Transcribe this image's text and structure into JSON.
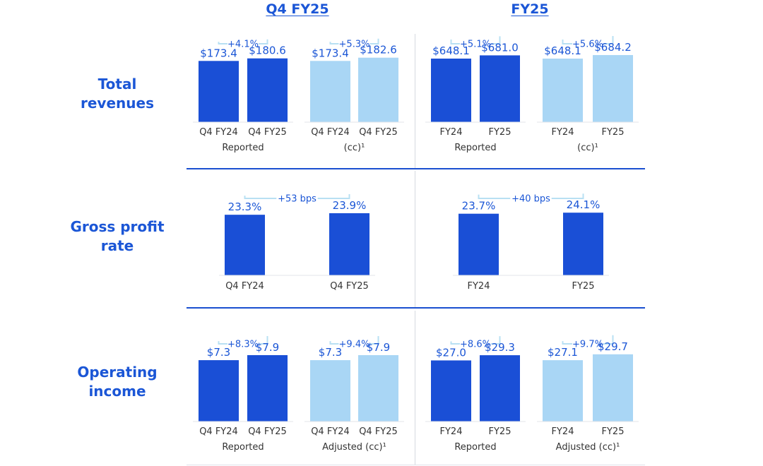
{
  "headers": {
    "q4": "Q4 FY25",
    "fy": "FY25"
  },
  "rows": [
    {
      "label_lines": [
        "Total",
        "revenues"
      ]
    },
    {
      "label_lines": [
        "Gross profit",
        "rate"
      ]
    },
    {
      "label_lines": [
        "Operating",
        "income"
      ]
    }
  ],
  "colors": {
    "dark": "#1a4fd6",
    "light": "#a9d6f5",
    "text": "#1b56d6",
    "bracket": "#b8e0f3",
    "axis_label": "#333333"
  },
  "chart_data": [
    {
      "id": "rev-q4-reported",
      "type": "bar",
      "row": 0,
      "col": 0,
      "group_label": "Reported",
      "delta": "+4.1%",
      "ylim": [
        0,
        250
      ],
      "categories": [
        "Q4 FY24",
        "Q4 FY25"
      ],
      "values": [
        173.4,
        180.6
      ],
      "labels": [
        "$173.4",
        "$180.6"
      ],
      "colors": [
        "dark",
        "dark"
      ]
    },
    {
      "id": "rev-q4-cc",
      "type": "bar",
      "row": 0,
      "col": 1,
      "group_label": "(cc)¹",
      "delta": "+5.3%",
      "ylim": [
        0,
        250
      ],
      "categories": [
        "Q4 FY24",
        "Q4 FY25"
      ],
      "values": [
        173.4,
        182.6
      ],
      "labels": [
        "$173.4",
        "$182.6"
      ],
      "colors": [
        "light",
        "light"
      ]
    },
    {
      "id": "rev-fy-reported",
      "type": "bar",
      "row": 0,
      "col": 2,
      "group_label": "Reported",
      "delta": "+5.1%",
      "ylim": [
        0,
        900
      ],
      "categories": [
        "FY24",
        "FY25"
      ],
      "values": [
        648.1,
        681.0
      ],
      "labels": [
        "$648.1",
        "$681.0"
      ],
      "colors": [
        "dark",
        "dark"
      ]
    },
    {
      "id": "rev-fy-cc",
      "type": "bar",
      "row": 0,
      "col": 3,
      "group_label": "(cc)¹",
      "delta": "+5.6%",
      "ylim": [
        0,
        900
      ],
      "categories": [
        "FY24",
        "FY25"
      ],
      "values": [
        648.1,
        684.2
      ],
      "labels": [
        "$648.1",
        "$684.2"
      ],
      "colors": [
        "light",
        "light"
      ]
    },
    {
      "id": "gpr-q4",
      "type": "bar",
      "row": 1,
      "col": 0,
      "wide": true,
      "group_label": "",
      "delta": "+53 bps",
      "ylim": [
        0,
        38
      ],
      "categories": [
        "Q4 FY24",
        "Q4 FY25"
      ],
      "values": [
        23.3,
        23.9
      ],
      "labels": [
        "23.3%",
        "23.9%"
      ],
      "colors": [
        "dark",
        "dark"
      ]
    },
    {
      "id": "gpr-fy",
      "type": "bar",
      "row": 1,
      "col": 2,
      "wide": true,
      "group_label": "",
      "delta": "+40 bps",
      "ylim": [
        0,
        38
      ],
      "categories": [
        "FY24",
        "FY25"
      ],
      "values": [
        23.7,
        24.1
      ],
      "labels": [
        "23.7%",
        "24.1%"
      ],
      "colors": [
        "dark",
        "dark"
      ]
    },
    {
      "id": "oi-q4-reported",
      "type": "bar",
      "row": 2,
      "col": 0,
      "group_label": "Reported",
      "delta": "+8.3%",
      "ylim": [
        0,
        10.5
      ],
      "categories": [
        "Q4 FY24",
        "Q4 FY25"
      ],
      "values": [
        7.3,
        7.9
      ],
      "labels": [
        "$7.3",
        "$7.9"
      ],
      "colors": [
        "dark",
        "dark"
      ]
    },
    {
      "id": "oi-q4-adjusted",
      "type": "bar",
      "row": 2,
      "col": 1,
      "group_label": "Adjusted (cc)¹",
      "delta": "+9.4%",
      "ylim": [
        0,
        10.5
      ],
      "categories": [
        "Q4 FY24",
        "Q4 FY25"
      ],
      "values": [
        7.3,
        7.9
      ],
      "labels": [
        "$7.3",
        "$7.9"
      ],
      "colors": [
        "light",
        "light"
      ]
    },
    {
      "id": "oi-fy-reported",
      "type": "bar",
      "row": 2,
      "col": 2,
      "group_label": "Reported",
      "delta": "+8.6%",
      "ylim": [
        0,
        39
      ],
      "categories": [
        "FY24",
        "FY25"
      ],
      "values": [
        27.0,
        29.3
      ],
      "labels": [
        "$27.0",
        "$29.3"
      ],
      "colors": [
        "dark",
        "dark"
      ]
    },
    {
      "id": "oi-fy-adjusted",
      "type": "bar",
      "row": 2,
      "col": 3,
      "group_label": "Adjusted (cc)¹",
      "delta": "+9.7%",
      "ylim": [
        0,
        39
      ],
      "categories": [
        "FY24",
        "FY25"
      ],
      "values": [
        27.1,
        29.7
      ],
      "labels": [
        "$27.1",
        "$29.7"
      ],
      "colors": [
        "light",
        "light"
      ]
    }
  ]
}
